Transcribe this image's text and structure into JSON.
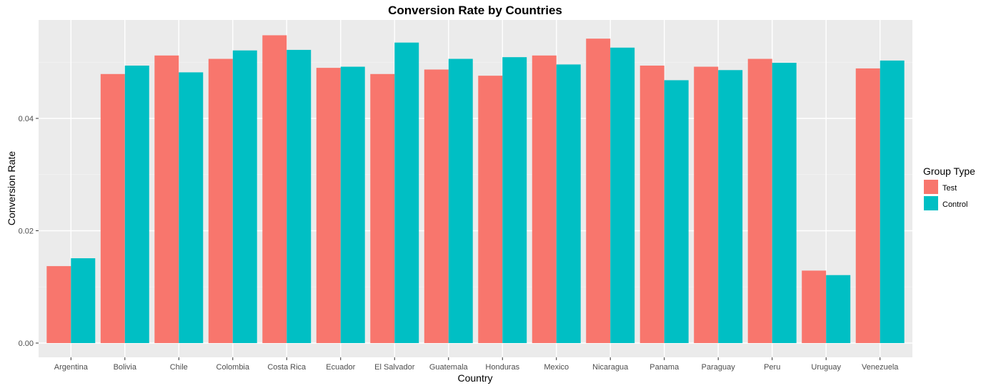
{
  "chart_data": {
    "type": "bar",
    "title": "Conversion Rate by Countries",
    "xlabel": "Country",
    "ylabel": "Conversion Rate",
    "ylim": [
      -0.0003,
      0.0573
    ],
    "yticks": [
      "0.00",
      "0.02",
      "0.04"
    ],
    "ytick_values": [
      0.0,
      0.02,
      0.04
    ],
    "grid": true,
    "legend": {
      "title": "Group Type",
      "position": "right"
    },
    "categories": [
      "Argentina",
      "Bolivia",
      "Chile",
      "Colombia",
      "Costa Rica",
      "Ecuador",
      "El Salvador",
      "Guatemala",
      "Honduras",
      "Mexico",
      "Nicaragua",
      "Panama",
      "Paraguay",
      "Peru",
      "Uruguay",
      "Venezuela"
    ],
    "series": [
      {
        "name": "Test",
        "color": "#F8766D",
        "values": [
          0.0137,
          0.0479,
          0.0512,
          0.0506,
          0.0548,
          0.049,
          0.0479,
          0.0487,
          0.0476,
          0.0512,
          0.0542,
          0.0494,
          0.0492,
          0.0506,
          0.0129,
          0.0489
        ]
      },
      {
        "name": "Control",
        "color": "#00BFC4",
        "values": [
          0.0151,
          0.0494,
          0.0482,
          0.0521,
          0.0522,
          0.0492,
          0.0535,
          0.0506,
          0.0509,
          0.0496,
          0.0526,
          0.0468,
          0.0486,
          0.0499,
          0.0121,
          0.0503
        ]
      }
    ]
  }
}
